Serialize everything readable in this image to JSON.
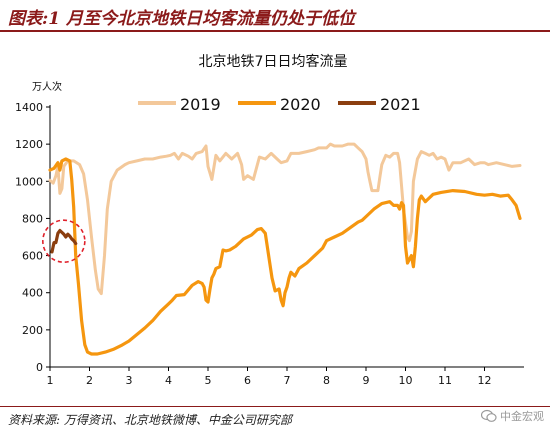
{
  "figure_title": "图表:1 月至今北京地铁日均客流量仍处于低位",
  "source": "资料来源: 万得资讯、北京地铁微博、中金公司研究部",
  "watermark": "中金宏观",
  "colors": {
    "accent": "#8b1a1a",
    "series_2019": "#f3c89a",
    "series_2020": "#f5960f",
    "series_2021": "#8b3e0f",
    "highlight_circle": "#e0202a"
  },
  "chart_data": {
    "type": "line",
    "title": "北京地铁7日日均客流量",
    "ylabel": "万人次",
    "xlabel": "",
    "xlim": [
      1,
      13
    ],
    "ylim": [
      0,
      1400
    ],
    "yticks": [
      0,
      200,
      400,
      600,
      800,
      1000,
      1200,
      1400
    ],
    "xticks": [
      1,
      2,
      3,
      4,
      5,
      6,
      7,
      8,
      9,
      10,
      11,
      12
    ],
    "grid": false,
    "legend": "top",
    "annotation": "dashed circle highlighting the 2021 series",
    "series": [
      {
        "name": "2019",
        "color": "#f3c89a",
        "points": [
          [
            1.0,
            1005
          ],
          [
            1.08,
            990
          ],
          [
            1.15,
            1030
          ],
          [
            1.2,
            1080
          ],
          [
            1.25,
            935
          ],
          [
            1.3,
            960
          ],
          [
            1.35,
            1080
          ],
          [
            1.45,
            1110
          ],
          [
            1.6,
            1110
          ],
          [
            1.75,
            1090
          ],
          [
            1.85,
            1040
          ],
          [
            1.95,
            900
          ],
          [
            2.05,
            700
          ],
          [
            2.15,
            520
          ],
          [
            2.22,
            420
          ],
          [
            2.3,
            395
          ],
          [
            2.38,
            600
          ],
          [
            2.45,
            850
          ],
          [
            2.55,
            1000
          ],
          [
            2.7,
            1060
          ],
          [
            2.9,
            1090
          ],
          [
            3.0,
            1100
          ],
          [
            3.2,
            1110
          ],
          [
            3.4,
            1120
          ],
          [
            3.6,
            1120
          ],
          [
            3.8,
            1130
          ],
          [
            3.95,
            1135
          ],
          [
            4.05,
            1140
          ],
          [
            4.15,
            1150
          ],
          [
            4.25,
            1120
          ],
          [
            4.35,
            1150
          ],
          [
            4.5,
            1135
          ],
          [
            4.6,
            1120
          ],
          [
            4.7,
            1150
          ],
          [
            4.85,
            1160
          ],
          [
            4.95,
            1190
          ],
          [
            5.0,
            1080
          ],
          [
            5.1,
            1010
          ],
          [
            5.2,
            1140
          ],
          [
            5.3,
            1110
          ],
          [
            5.45,
            1150
          ],
          [
            5.6,
            1120
          ],
          [
            5.75,
            1150
          ],
          [
            5.85,
            1090
          ],
          [
            5.9,
            1010
          ],
          [
            6.0,
            1030
          ],
          [
            6.15,
            1010
          ],
          [
            6.3,
            1130
          ],
          [
            6.45,
            1120
          ],
          [
            6.6,
            1150
          ],
          [
            6.75,
            1120
          ],
          [
            6.85,
            1100
          ],
          [
            7.0,
            1110
          ],
          [
            7.1,
            1150
          ],
          [
            7.3,
            1150
          ],
          [
            7.5,
            1160
          ],
          [
            7.7,
            1170
          ],
          [
            7.8,
            1180
          ],
          [
            8.0,
            1180
          ],
          [
            8.1,
            1200
          ],
          [
            8.2,
            1190
          ],
          [
            8.4,
            1190
          ],
          [
            8.55,
            1200
          ],
          [
            8.7,
            1200
          ],
          [
            8.8,
            1180
          ],
          [
            8.9,
            1160
          ],
          [
            9.0,
            1120
          ],
          [
            9.05,
            1050
          ],
          [
            9.1,
            1000
          ],
          [
            9.15,
            950
          ],
          [
            9.3,
            950
          ],
          [
            9.35,
            1020
          ],
          [
            9.4,
            1090
          ],
          [
            9.5,
            1140
          ],
          [
            9.6,
            1130
          ],
          [
            9.7,
            1150
          ],
          [
            9.8,
            1150
          ],
          [
            9.85,
            1100
          ],
          [
            9.95,
            850
          ],
          [
            10.05,
            700
          ],
          [
            10.1,
            680
          ],
          [
            10.15,
            730
          ],
          [
            10.2,
            1000
          ],
          [
            10.3,
            1120
          ],
          [
            10.4,
            1160
          ],
          [
            10.5,
            1150
          ],
          [
            10.6,
            1140
          ],
          [
            10.7,
            1150
          ],
          [
            10.8,
            1120
          ],
          [
            10.9,
            1130
          ],
          [
            11.0,
            1120
          ],
          [
            11.1,
            1060
          ],
          [
            11.2,
            1100
          ],
          [
            11.4,
            1100
          ],
          [
            11.6,
            1120
          ],
          [
            11.75,
            1090
          ],
          [
            11.9,
            1100
          ],
          [
            12.0,
            1100
          ],
          [
            12.1,
            1090
          ],
          [
            12.3,
            1100
          ],
          [
            12.5,
            1090
          ],
          [
            12.7,
            1080
          ],
          [
            12.9,
            1085
          ]
        ]
      },
      {
        "name": "2020",
        "color": "#f5960f",
        "points": [
          [
            1.0,
            1060
          ],
          [
            1.1,
            1070
          ],
          [
            1.2,
            1100
          ],
          [
            1.25,
            1060
          ],
          [
            1.3,
            1110
          ],
          [
            1.4,
            1120
          ],
          [
            1.5,
            1110
          ],
          [
            1.55,
            1010
          ],
          [
            1.6,
            860
          ],
          [
            1.65,
            600
          ],
          [
            1.72,
            450
          ],
          [
            1.8,
            250
          ],
          [
            1.88,
            120
          ],
          [
            1.95,
            80
          ],
          [
            2.05,
            70
          ],
          [
            2.2,
            70
          ],
          [
            2.4,
            80
          ],
          [
            2.6,
            95
          ],
          [
            2.8,
            115
          ],
          [
            3.0,
            140
          ],
          [
            3.2,
            175
          ],
          [
            3.4,
            210
          ],
          [
            3.6,
            250
          ],
          [
            3.8,
            300
          ],
          [
            4.0,
            340
          ],
          [
            4.1,
            360
          ],
          [
            4.2,
            385
          ],
          [
            4.4,
            390
          ],
          [
            4.6,
            440
          ],
          [
            4.75,
            460
          ],
          [
            4.85,
            450
          ],
          [
            4.9,
            430
          ],
          [
            4.95,
            360
          ],
          [
            5.0,
            350
          ],
          [
            5.05,
            420
          ],
          [
            5.1,
            480
          ],
          [
            5.15,
            500
          ],
          [
            5.2,
            530
          ],
          [
            5.3,
            540
          ],
          [
            5.38,
            630
          ],
          [
            5.45,
            625
          ],
          [
            5.55,
            630
          ],
          [
            5.7,
            650
          ],
          [
            5.9,
            690
          ],
          [
            6.1,
            710
          ],
          [
            6.25,
            740
          ],
          [
            6.35,
            745
          ],
          [
            6.45,
            720
          ],
          [
            6.55,
            580
          ],
          [
            6.62,
            480
          ],
          [
            6.7,
            410
          ],
          [
            6.8,
            420
          ],
          [
            6.85,
            360
          ],
          [
            6.9,
            330
          ],
          [
            6.95,
            400
          ],
          [
            7.0,
            430
          ],
          [
            7.05,
            480
          ],
          [
            7.1,
            510
          ],
          [
            7.2,
            490
          ],
          [
            7.3,
            530
          ],
          [
            7.5,
            560
          ],
          [
            7.7,
            600
          ],
          [
            7.9,
            640
          ],
          [
            8.0,
            680
          ],
          [
            8.2,
            700
          ],
          [
            8.4,
            720
          ],
          [
            8.6,
            750
          ],
          [
            8.8,
            780
          ],
          [
            8.9,
            790
          ],
          [
            9.0,
            810
          ],
          [
            9.2,
            850
          ],
          [
            9.4,
            880
          ],
          [
            9.6,
            890
          ],
          [
            9.7,
            870
          ],
          [
            9.8,
            870
          ],
          [
            9.85,
            850
          ],
          [
            9.9,
            885
          ],
          [
            9.95,
            870
          ],
          [
            10.0,
            650
          ],
          [
            10.05,
            560
          ],
          [
            10.1,
            580
          ],
          [
            10.15,
            600
          ],
          [
            10.2,
            540
          ],
          [
            10.25,
            650
          ],
          [
            10.3,
            800
          ],
          [
            10.35,
            900
          ],
          [
            10.4,
            920
          ],
          [
            10.5,
            890
          ],
          [
            10.55,
            900
          ],
          [
            10.7,
            930
          ],
          [
            10.9,
            940
          ],
          [
            11.2,
            950
          ],
          [
            11.5,
            945
          ],
          [
            11.8,
            930
          ],
          [
            12.0,
            925
          ],
          [
            12.2,
            930
          ],
          [
            12.4,
            920
          ],
          [
            12.6,
            925
          ],
          [
            12.7,
            900
          ],
          [
            12.8,
            870
          ],
          [
            12.9,
            800
          ]
        ]
      },
      {
        "name": "2021",
        "color": "#8b3e0f",
        "points": [
          [
            1.05,
            620
          ],
          [
            1.1,
            670
          ],
          [
            1.15,
            670
          ],
          [
            1.2,
            720
          ],
          [
            1.25,
            735
          ],
          [
            1.3,
            725
          ],
          [
            1.35,
            715
          ],
          [
            1.4,
            700
          ],
          [
            1.45,
            715
          ],
          [
            1.5,
            705
          ],
          [
            1.55,
            690
          ],
          [
            1.6,
            680
          ],
          [
            1.65,
            665
          ]
        ]
      }
    ]
  }
}
